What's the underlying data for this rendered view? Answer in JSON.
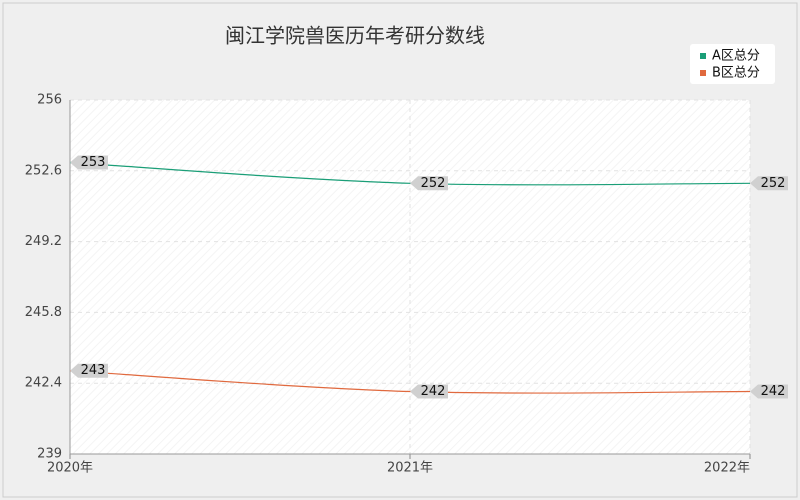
{
  "chart_data": {
    "type": "line",
    "title": "闽江学院兽医历年考研分数线",
    "categories": [
      "2020年",
      "2021年",
      "2022年"
    ],
    "series": [
      {
        "name": "A区总分",
        "color": "#1a9e77",
        "values": [
          253,
          252,
          252
        ]
      },
      {
        "name": "B区总分",
        "color": "#e0693e",
        "values": [
          243,
          242,
          242
        ]
      }
    ],
    "ylim": [
      239,
      256
    ],
    "yticks": [
      239,
      242.4,
      245.8,
      249.2,
      252.6,
      256
    ],
    "grid": true,
    "legend": "top-right"
  }
}
